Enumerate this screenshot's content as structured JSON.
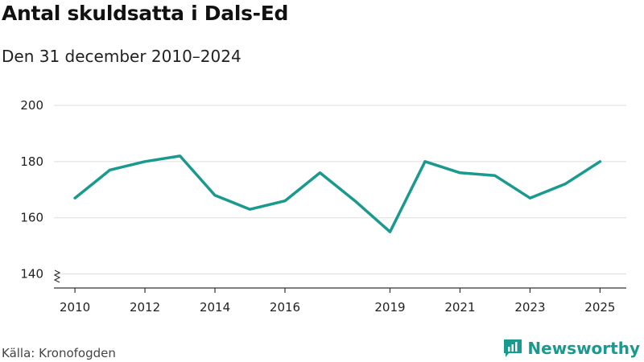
{
  "header": {
    "title": "Antal skuldsatta i Dals-Ed",
    "subtitle": "Den 31 december 2010–2024"
  },
  "footer": {
    "source": "Källa: Kronofogden",
    "brand": "Newsworthy"
  },
  "colors": {
    "line": "#1a9a8f",
    "grid": "#dddddd",
    "axis": "#333333",
    "brand": "#1a9a8f"
  },
  "chart_data": {
    "type": "line",
    "title": "Antal skuldsatta i Dals-Ed",
    "subtitle": "Den 31 december 2010–2024",
    "xlabel": "",
    "ylabel": "",
    "x": [
      2010,
      2011,
      2012,
      2013,
      2014,
      2015,
      2016,
      2017,
      2018,
      2019,
      2020,
      2021,
      2022,
      2023,
      2024,
      2025
    ],
    "series": [
      {
        "name": "Antal skuldsatta",
        "values": [
          167,
          177,
          180,
          182,
          168,
          163,
          166,
          176,
          166,
          155,
          180,
          176,
          175,
          167,
          172,
          180
        ]
      }
    ],
    "xlim": [
      2009.4,
      2025.75
    ],
    "ylim": [
      135,
      200
    ],
    "y_ticks": [
      "140",
      "160",
      "180",
      "200"
    ],
    "x_ticks": [
      "2010",
      "2012",
      "2014",
      "2016",
      "2019",
      "2021",
      "2023",
      "2025"
    ],
    "y_axis_break": true,
    "grid": true,
    "legend": "none"
  }
}
